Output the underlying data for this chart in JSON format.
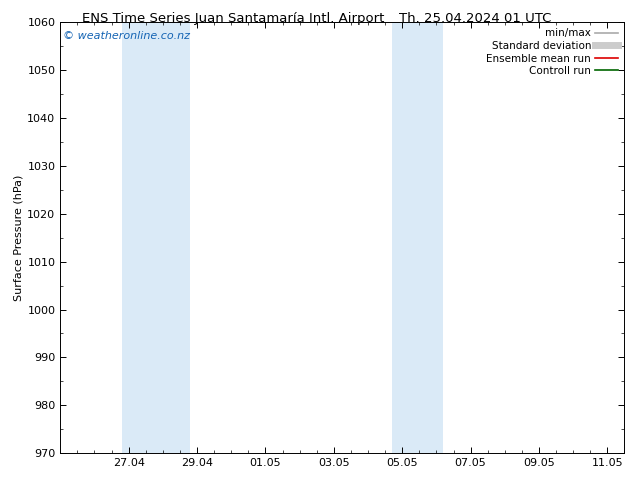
{
  "title_left": "ENS Time Series Juan Santamaría Intl. Airport",
  "title_right": "Th. 25.04.2024 01 UTC",
  "ylabel": "Surface Pressure (hPa)",
  "ylim": [
    970,
    1060
  ],
  "yticks": [
    970,
    980,
    990,
    1000,
    1010,
    1020,
    1030,
    1040,
    1050,
    1060
  ],
  "xlim": [
    0,
    16.5
  ],
  "xtick_labels": [
    "27.04",
    "29.04",
    "01.05",
    "03.05",
    "05.05",
    "07.05",
    "09.05",
    "11.05"
  ],
  "xtick_positions": [
    2,
    4,
    6,
    8,
    10,
    12,
    14,
    16
  ],
  "background_color": "#ffffff",
  "plot_bg_color": "#ffffff",
  "shaded_bands": [
    {
      "x_start": 1.8,
      "x_end": 3.8,
      "color": "#daeaf7"
    },
    {
      "x_start": 9.7,
      "x_end": 11.2,
      "color": "#daeaf7"
    }
  ],
  "watermark_text": "© weatheronline.co.nz",
  "watermark_color": "#1464b4",
  "legend_entries": [
    {
      "label": "min/max",
      "color": "#aaaaaa",
      "lw": 1.2,
      "linestyle": "-"
    },
    {
      "label": "Standard deviation",
      "color": "#cccccc",
      "lw": 5,
      "linestyle": "-"
    },
    {
      "label": "Ensemble mean run",
      "color": "#dd0000",
      "lw": 1.2,
      "linestyle": "-"
    },
    {
      "label": "Controll run",
      "color": "#006600",
      "lw": 1.2,
      "linestyle": "-"
    }
  ],
  "spine_color": "#000000",
  "font_size_title": 9.5,
  "font_size_axis": 8,
  "font_size_tick": 8,
  "font_size_legend": 7.5,
  "font_size_watermark": 8
}
